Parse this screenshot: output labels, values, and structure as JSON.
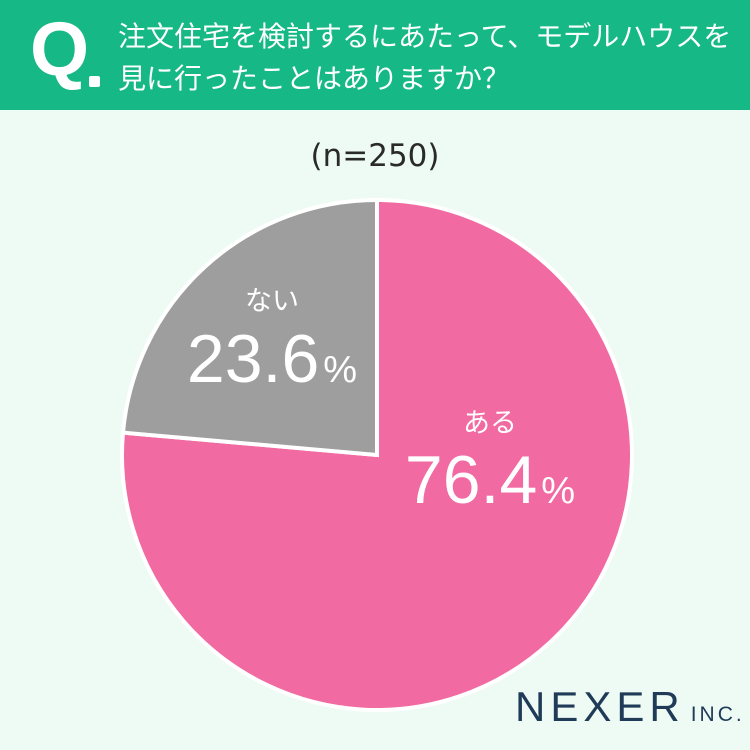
{
  "header": {
    "q_label": "Q",
    "question_line1": "注文住宅を検討するにあたって、モデルハウスを",
    "question_line2": "見に行ったことはありますか？"
  },
  "sample_size": "(n=250)",
  "colors": {
    "header_bg": "#16b985",
    "background": "#eefbf5",
    "aru": "#f26aa2",
    "nai": "#9e9e9e",
    "logo": "#1f3b57"
  },
  "chart_data": {
    "type": "pie",
    "title": "",
    "slices": [
      {
        "label": "ある",
        "value": 76.4,
        "value_text": "76.4",
        "unit": "%",
        "color": "#f26aa2"
      },
      {
        "label": "ない",
        "value": 23.6,
        "value_text": "23.6",
        "unit": "%",
        "color": "#9e9e9e"
      }
    ],
    "start": "12 o'clock",
    "direction": "clockwise"
  },
  "logo": {
    "main": "NEXER",
    "suffix": "INC."
  }
}
